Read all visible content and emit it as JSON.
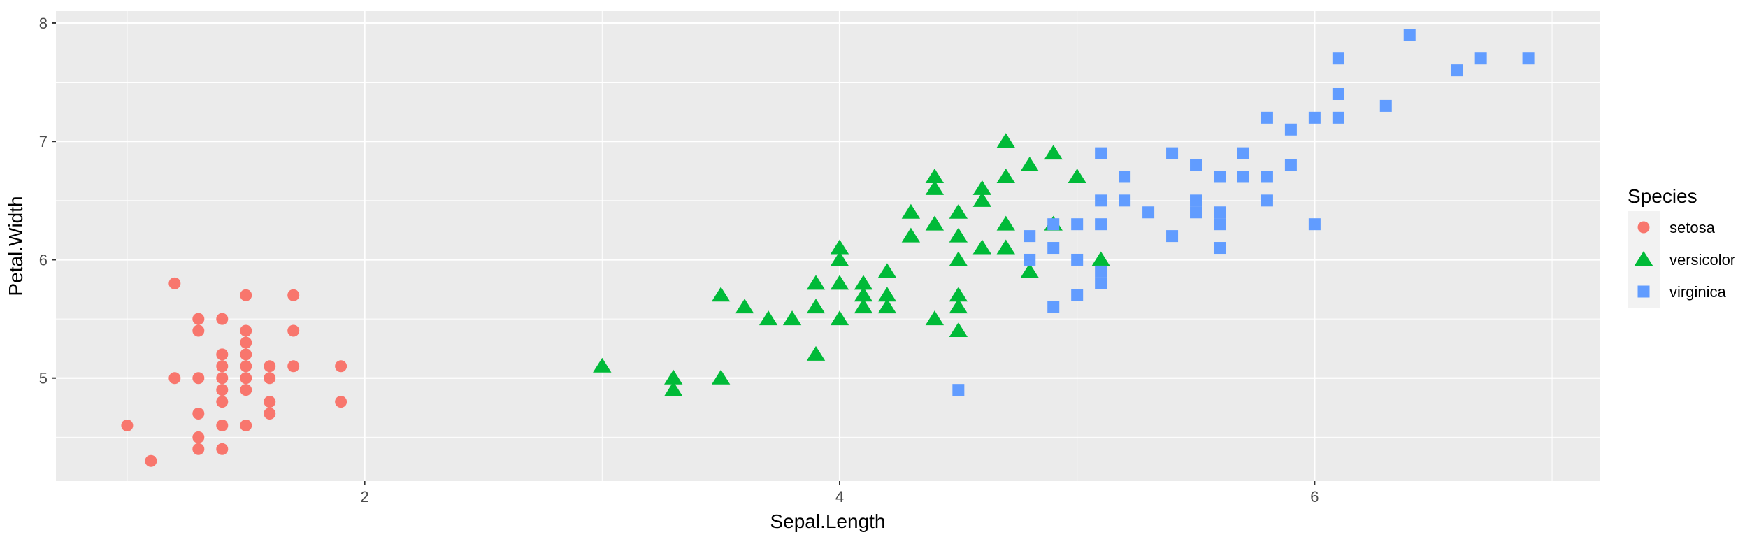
{
  "chart_data": {
    "type": "scatter",
    "title": "",
    "xlabel": "Sepal.Length",
    "ylabel": "Petal.Width",
    "xlim": [
      0.7,
      7.2
    ],
    "ylim": [
      4.13,
      8.1
    ],
    "x_ticks": [
      2,
      4,
      6
    ],
    "y_ticks": [
      5,
      6,
      7,
      8
    ],
    "grid": true,
    "legend": {
      "title": "Species",
      "position": "right"
    },
    "series": [
      {
        "name": "setosa",
        "color": "#F8766D",
        "shape": "circle",
        "points": [
          [
            1.0,
            4.6
          ],
          [
            1.1,
            4.3
          ],
          [
            1.2,
            5.8
          ],
          [
            1.2,
            5.0
          ],
          [
            1.3,
            5.5
          ],
          [
            1.3,
            5.4
          ],
          [
            1.3,
            5.0
          ],
          [
            1.3,
            4.7
          ],
          [
            1.3,
            4.5
          ],
          [
            1.3,
            4.4
          ],
          [
            1.4,
            5.5
          ],
          [
            1.4,
            5.2
          ],
          [
            1.4,
            5.1
          ],
          [
            1.4,
            5.0
          ],
          [
            1.4,
            4.9
          ],
          [
            1.4,
            4.8
          ],
          [
            1.4,
            4.6
          ],
          [
            1.4,
            4.4
          ],
          [
            1.5,
            5.7
          ],
          [
            1.5,
            5.4
          ],
          [
            1.5,
            5.3
          ],
          [
            1.5,
            5.2
          ],
          [
            1.5,
            5.1
          ],
          [
            1.5,
            5.0
          ],
          [
            1.5,
            4.9
          ],
          [
            1.5,
            4.6
          ],
          [
            1.6,
            5.1
          ],
          [
            1.6,
            5.0
          ],
          [
            1.6,
            4.8
          ],
          [
            1.6,
            4.7
          ],
          [
            1.7,
            5.7
          ],
          [
            1.7,
            5.4
          ],
          [
            1.7,
            5.1
          ],
          [
            1.9,
            5.1
          ],
          [
            1.9,
            4.8
          ]
        ]
      },
      {
        "name": "versicolor",
        "color": "#00BA38",
        "shape": "triangle",
        "points": [
          [
            3.0,
            5.1
          ],
          [
            3.3,
            5.0
          ],
          [
            3.3,
            4.9
          ],
          [
            3.5,
            5.7
          ],
          [
            3.5,
            5.0
          ],
          [
            3.6,
            5.6
          ],
          [
            3.7,
            5.5
          ],
          [
            3.8,
            5.5
          ],
          [
            3.9,
            5.8
          ],
          [
            3.9,
            5.6
          ],
          [
            3.9,
            5.2
          ],
          [
            4.0,
            6.1
          ],
          [
            4.0,
            6.0
          ],
          [
            4.0,
            5.8
          ],
          [
            4.0,
            5.5
          ],
          [
            4.1,
            5.8
          ],
          [
            4.1,
            5.7
          ],
          [
            4.1,
            5.6
          ],
          [
            4.2,
            5.9
          ],
          [
            4.2,
            5.7
          ],
          [
            4.2,
            5.6
          ],
          [
            4.3,
            6.4
          ],
          [
            4.3,
            6.2
          ],
          [
            4.4,
            6.7
          ],
          [
            4.4,
            6.6
          ],
          [
            4.4,
            6.3
          ],
          [
            4.4,
            5.5
          ],
          [
            4.5,
            6.4
          ],
          [
            4.5,
            6.2
          ],
          [
            4.5,
            6.0
          ],
          [
            4.5,
            5.7
          ],
          [
            4.5,
            5.6
          ],
          [
            4.5,
            5.4
          ],
          [
            4.6,
            6.6
          ],
          [
            4.6,
            6.5
          ],
          [
            4.6,
            6.1
          ],
          [
            4.7,
            7.0
          ],
          [
            4.7,
            6.7
          ],
          [
            4.7,
            6.3
          ],
          [
            4.7,
            6.1
          ],
          [
            4.8,
            6.8
          ],
          [
            4.8,
            5.9
          ],
          [
            4.9,
            6.9
          ],
          [
            4.9,
            6.3
          ],
          [
            5.0,
            6.7
          ],
          [
            5.1,
            6.0
          ]
        ]
      },
      {
        "name": "virginica",
        "color": "#619CFF",
        "shape": "square",
        "points": [
          [
            4.5,
            4.9
          ],
          [
            4.8,
            6.2
          ],
          [
            4.8,
            6.0
          ],
          [
            4.9,
            6.3
          ],
          [
            4.9,
            6.1
          ],
          [
            4.9,
            5.6
          ],
          [
            5.0,
            6.3
          ],
          [
            5.0,
            6.0
          ],
          [
            5.0,
            5.7
          ],
          [
            5.1,
            6.9
          ],
          [
            5.1,
            6.5
          ],
          [
            5.1,
            6.3
          ],
          [
            5.1,
            5.9
          ],
          [
            5.1,
            5.8
          ],
          [
            5.2,
            6.7
          ],
          [
            5.2,
            6.5
          ],
          [
            5.3,
            6.4
          ],
          [
            5.4,
            6.9
          ],
          [
            5.4,
            6.2
          ],
          [
            5.5,
            6.8
          ],
          [
            5.5,
            6.5
          ],
          [
            5.5,
            6.4
          ],
          [
            5.6,
            6.7
          ],
          [
            5.6,
            6.4
          ],
          [
            5.6,
            6.3
          ],
          [
            5.6,
            6.1
          ],
          [
            5.7,
            6.9
          ],
          [
            5.7,
            6.7
          ],
          [
            5.8,
            7.2
          ],
          [
            5.8,
            6.7
          ],
          [
            5.8,
            6.5
          ],
          [
            5.9,
            7.1
          ],
          [
            5.9,
            6.8
          ],
          [
            6.0,
            7.2
          ],
          [
            6.0,
            6.3
          ],
          [
            6.1,
            7.7
          ],
          [
            6.1,
            7.4
          ],
          [
            6.1,
            7.2
          ],
          [
            6.3,
            7.3
          ],
          [
            6.4,
            7.9
          ],
          [
            6.6,
            7.6
          ],
          [
            6.7,
            7.7
          ],
          [
            6.9,
            7.7
          ]
        ]
      }
    ]
  }
}
